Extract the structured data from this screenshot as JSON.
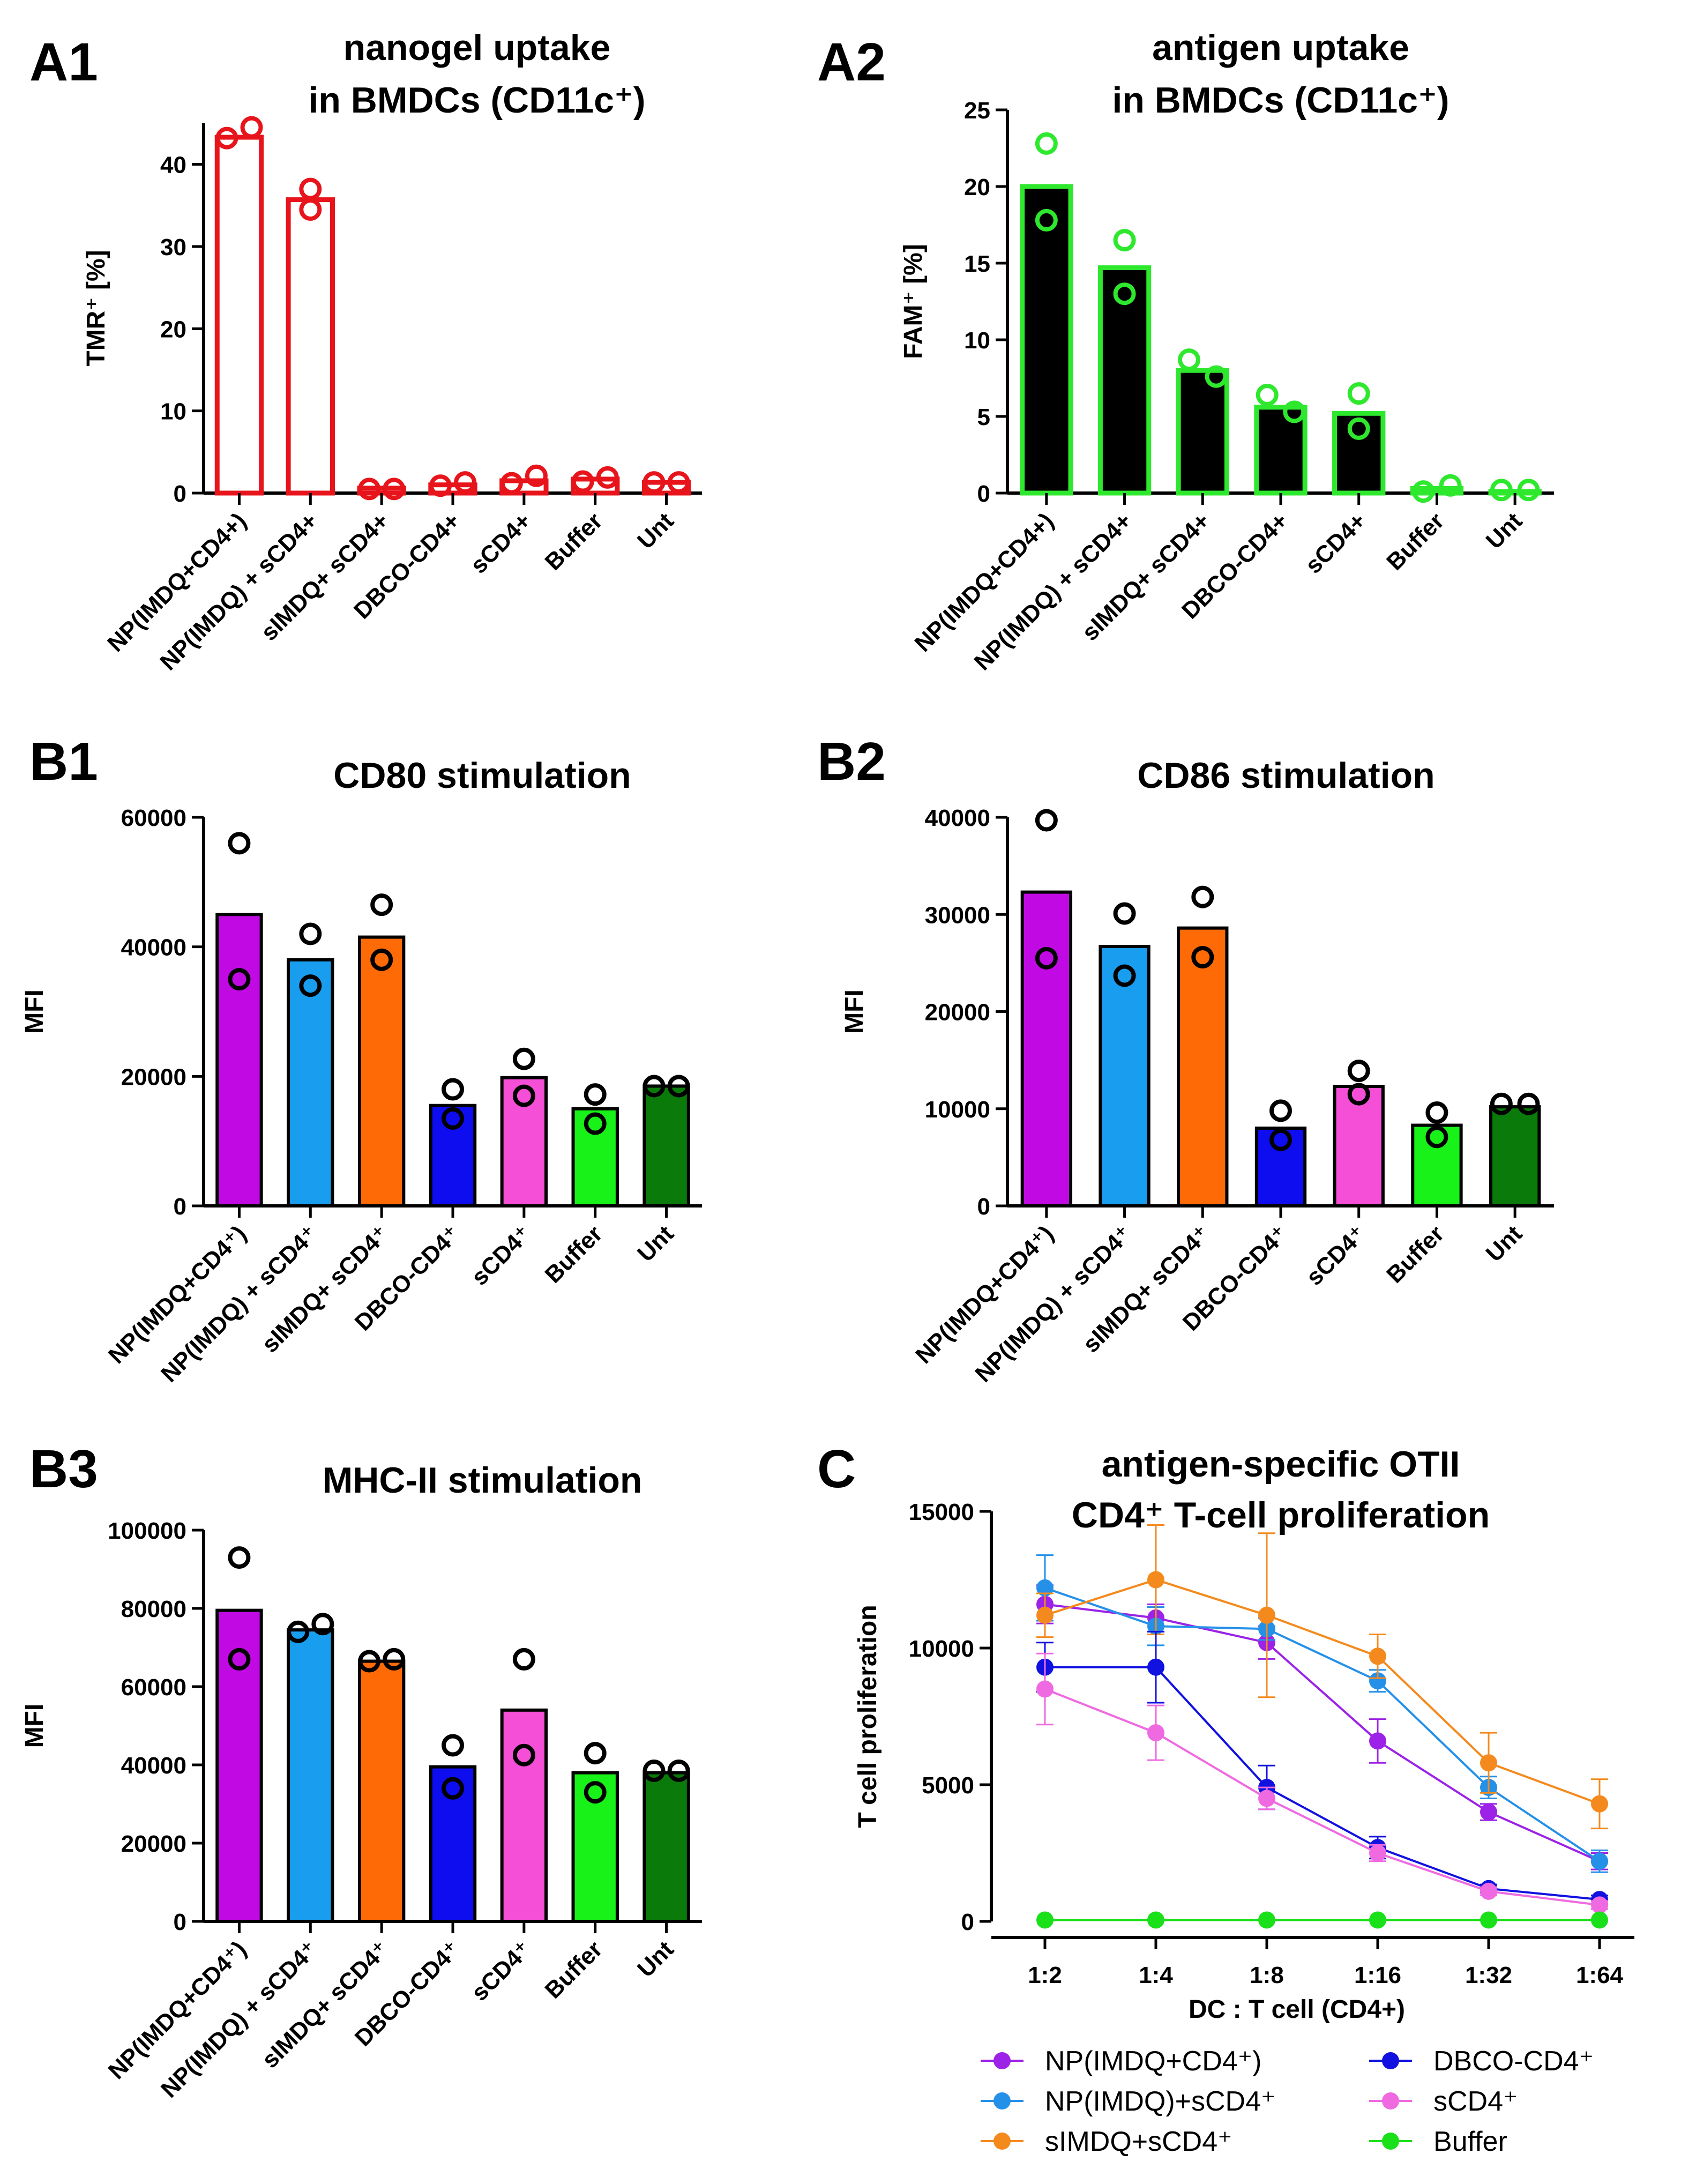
{
  "chart_data": [
    {
      "id": "A1",
      "type": "bar",
      "panel_label": "A1",
      "title": "nanogel uptake\nin BMDCs (CD11c⁺)",
      "ylabel": "TMR⁺ [%]",
      "xlabel": "",
      "ylim": [
        0,
        45
      ],
      "yticks": [
        0,
        10,
        20,
        30,
        40
      ],
      "categories": [
        "NP(IMDQ+CD4+)",
        "NP(IMDQ) + sCD4+",
        "sIMDQ+ sCD4+",
        "DBCO-CD4+",
        "sCD4+",
        "Buffer",
        "Unt"
      ],
      "values": [
        43.3,
        35.7,
        0.6,
        1.0,
        1.5,
        1.7,
        1.3
      ],
      "points": [
        [
          43.2,
          44.5
        ],
        [
          34.5,
          37.0
        ],
        [
          0.5,
          0.5
        ],
        [
          0.9,
          1.3
        ],
        [
          1.2,
          2.1
        ],
        [
          1.4,
          1.9
        ],
        [
          1.3,
          1.3
        ]
      ],
      "bar_fill": "#ffffff",
      "bar_stroke": "#e8141b",
      "point_color": "#e8141b"
    },
    {
      "id": "A2",
      "type": "bar",
      "panel_label": "A2",
      "title": "antigen uptake\nin BMDCs (CD11c⁺)",
      "ylabel": "FAM⁺ [%]",
      "xlabel": "",
      "ylim": [
        0,
        25
      ],
      "yticks": [
        0,
        5,
        10,
        15,
        20,
        25
      ],
      "categories": [
        "NP(IMDQ+CD4+)",
        "NP(IMDQ) + sCD4+",
        "sIMDQ+ sCD4+",
        "DBCO-CD4+",
        "sCD4+",
        "Buffer",
        "Unt"
      ],
      "values": [
        20.0,
        14.7,
        8.0,
        5.6,
        5.2,
        0.3,
        0.1
      ],
      "points": [
        [
          22.8,
          17.8
        ],
        [
          16.5,
          13.0
        ],
        [
          8.7,
          7.6
        ],
        [
          6.4,
          5.3
        ],
        [
          6.5,
          4.2
        ],
        [
          0.1,
          0.5
        ],
        [
          0.2,
          0.2
        ]
      ],
      "bar_fill": "#000000",
      "bar_stroke": "#2ee82e",
      "point_color": "#2ee82e"
    },
    {
      "id": "B1",
      "type": "bar",
      "panel_label": "B1",
      "title": "CD80 stimulation",
      "ylabel": "MFI",
      "xlabel": "",
      "ylim": [
        0,
        60000
      ],
      "yticks": [
        0,
        20000,
        40000,
        60000
      ],
      "categories": [
        "NP(IMDQ+CD4⁺)",
        "NP(IMDQ) + sCD4⁺",
        "sIMDQ+ sCD4⁺",
        "DBCO-CD4⁺",
        "sCD4⁺",
        "Buffer",
        "Unt"
      ],
      "values": [
        45000,
        38000,
        41500,
        15500,
        19800,
        15000,
        18500
      ],
      "points": [
        [
          56000,
          35000
        ],
        [
          42000,
          34000
        ],
        [
          46500,
          38000
        ],
        [
          18000,
          13500
        ],
        [
          22700,
          17000
        ],
        [
          17200,
          12700
        ],
        [
          18500,
          18500
        ]
      ],
      "bar_colors": [
        "#c10ae3",
        "#199eef",
        "#fd6a06",
        "#0d0df0",
        "#f44fd6",
        "#18f218",
        "#0a7b0a"
      ],
      "bar_stroke": "#000000",
      "point_color": "#000000"
    },
    {
      "id": "B2",
      "type": "bar",
      "panel_label": "B2",
      "title": "CD86 stimulation",
      "ylabel": "MFI",
      "xlabel": "",
      "ylim": [
        0,
        40000
      ],
      "yticks": [
        0,
        10000,
        20000,
        30000,
        40000
      ],
      "categories": [
        "NP(IMDQ+CD4⁺)",
        "NP(IMDQ) + sCD4⁺",
        "sIMDQ+ sCD4⁺",
        "DBCO-CD4⁺",
        "sCD4⁺",
        "Buffer",
        "Unt"
      ],
      "values": [
        32300,
        26700,
        28600,
        8000,
        12300,
        8300,
        10200
      ],
      "points": [
        [
          39700,
          25500
        ],
        [
          30100,
          23700
        ],
        [
          31800,
          25600
        ],
        [
          9800,
          6800
        ],
        [
          13900,
          11500
        ],
        [
          9600,
          7100
        ],
        [
          10500,
          10500
        ]
      ],
      "bar_colors": [
        "#c10ae3",
        "#199eef",
        "#fd6a06",
        "#0d0df0",
        "#f44fd6",
        "#18f218",
        "#0a7b0a"
      ],
      "bar_stroke": "#000000",
      "point_color": "#000000"
    },
    {
      "id": "B3",
      "type": "bar",
      "panel_label": "B3",
      "title": "MHC-II  stimulation",
      "ylabel": "MFI",
      "xlabel": "",
      "ylim": [
        0,
        100000
      ],
      "yticks": [
        0,
        20000,
        40000,
        60000,
        80000,
        100000
      ],
      "categories": [
        "NP(IMDQ+CD4⁺)",
        "NP(IMDQ) + sCD4⁺",
        "sIMDQ+ sCD4⁺",
        "DBCO-CD4⁺",
        "sCD4⁺",
        "Buffer",
        "Unt"
      ],
      "values": [
        79500,
        74500,
        66500,
        39500,
        54000,
        38000,
        38000
      ],
      "points": [
        [
          93000,
          67000
        ],
        [
          74000,
          76000
        ],
        [
          66500,
          67000
        ],
        [
          45000,
          34000
        ],
        [
          67000,
          42500
        ],
        [
          43000,
          33000
        ],
        [
          38500,
          38500
        ]
      ],
      "bar_colors": [
        "#c10ae3",
        "#199eef",
        "#fd6a06",
        "#0d0df0",
        "#f44fd6",
        "#18f218",
        "#0a7b0a"
      ],
      "bar_stroke": "#000000",
      "point_color": "#000000"
    },
    {
      "id": "C",
      "type": "line",
      "panel_label": "C",
      "title": "antigen-specific OTII\nCD4⁺ T-cell proliferation",
      "ylabel": "T cell proliferation",
      "xlabel": "DC : T cell (CD4+)",
      "ylim": [
        0,
        15000
      ],
      "yticks": [
        0,
        5000,
        10000,
        15000
      ],
      "x": [
        "1:2",
        "1:4",
        "1:8",
        "1:16",
        "1:32",
        "1:64"
      ],
      "series": [
        {
          "name": "NP(IMDQ+CD4⁺)",
          "color": "#9b22e6",
          "values": [
            11600,
            11100,
            10200,
            6600,
            4000,
            2200
          ],
          "errors": [
            700,
            500,
            600,
            800,
            300,
            300
          ]
        },
        {
          "name": "NP(IMDQ)+sCD4⁺",
          "color": "#2590e8",
          "values": [
            12200,
            10800,
            10700,
            8800,
            4900,
            2200
          ],
          "errors": [
            1200,
            700,
            400,
            400,
            400,
            400
          ]
        },
        {
          "name": "sIMDQ+sCD4⁺",
          "color": "#f48a1e",
          "values": [
            11200,
            12500,
            11200,
            9700,
            5800,
            4300
          ],
          "errors": [
            800,
            2000,
            3000,
            800,
            1100,
            900
          ]
        },
        {
          "name": "DBCO-CD4⁺",
          "color": "#1111e0",
          "values": [
            9300,
            9300,
            4900,
            2700,
            1200,
            800
          ],
          "errors": [
            900,
            1300,
            800,
            400,
            150,
            150
          ]
        },
        {
          "name": "sCD4⁺",
          "color": "#ef6ae0",
          "values": [
            8500,
            6900,
            4500,
            2500,
            1100,
            600
          ],
          "errors": [
            1300,
            1000,
            400,
            300,
            150,
            150
          ]
        },
        {
          "name": "Buffer",
          "color": "#19e019",
          "values": [
            50,
            50,
            50,
            50,
            50,
            50
          ],
          "errors": [
            0,
            0,
            0,
            0,
            0,
            0
          ]
        }
      ]
    }
  ]
}
